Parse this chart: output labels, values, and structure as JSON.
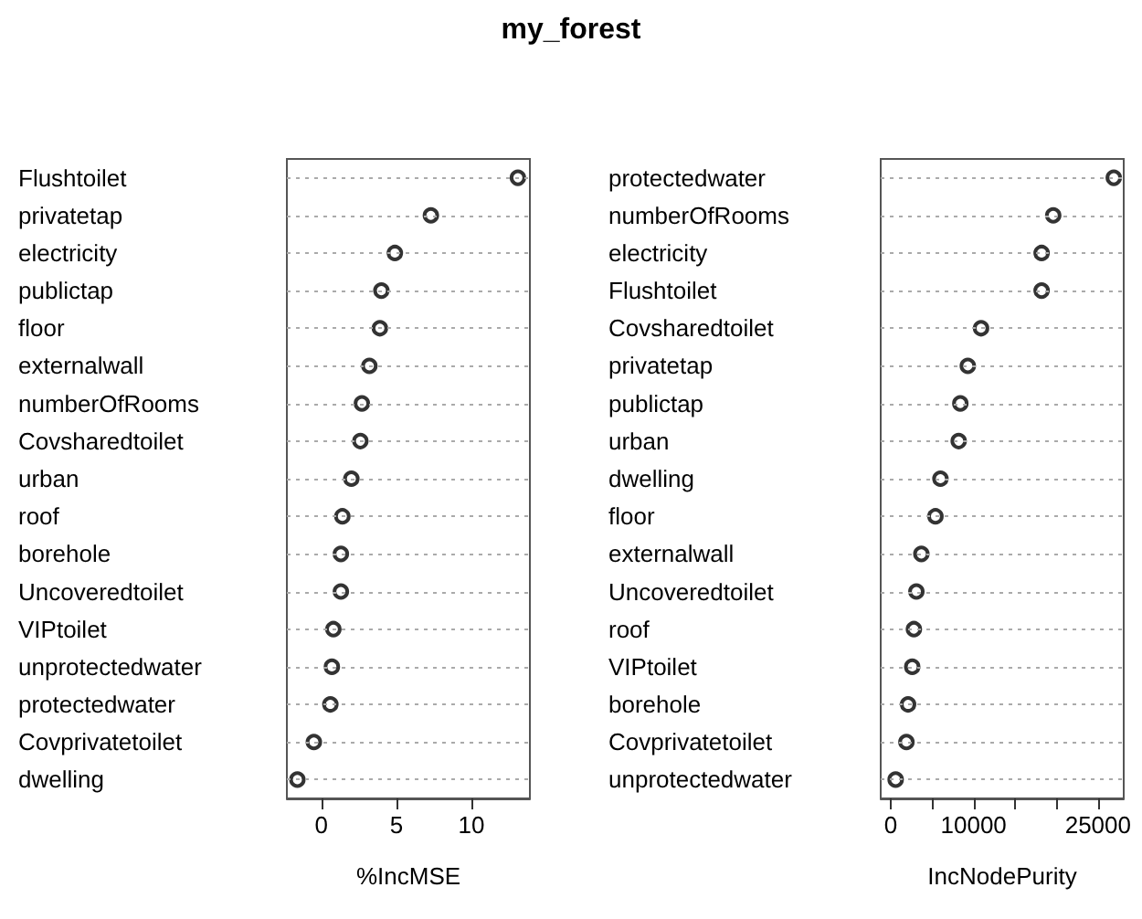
{
  "chart_data": [
    {
      "type": "scatter",
      "orientation": "horizontal",
      "title": "my_forest",
      "xlabel": "%IncMSE",
      "categories": [
        "Flushtoilet",
        "privatetap",
        "electricity",
        "publictap",
        "floor",
        "externalwall",
        "numberOfRooms",
        "Covsharedtoilet",
        "urban",
        "roof",
        "borehole",
        "Uncoveredtoilet",
        "VIPtoilet",
        "unprotectedwater",
        "protectedwater",
        "Covprivatetoilet",
        "dwelling"
      ],
      "values": [
        13.1,
        7.3,
        4.9,
        4.0,
        3.9,
        3.2,
        2.7,
        2.6,
        2.0,
        1.4,
        1.3,
        1.3,
        0.8,
        0.7,
        0.6,
        -0.5,
        -1.6
      ],
      "color": "#000000",
      "marker": "circle",
      "grid": "y",
      "xlim": [
        -2.3,
        13.9
      ],
      "xticks": [
        0,
        5,
        10
      ]
    },
    {
      "type": "scatter",
      "orientation": "horizontal",
      "xlabel": "IncNodePurity",
      "categories": [
        "protectedwater",
        "numberOfRooms",
        "electricity",
        "Flushtoilet",
        "Covsharedtoilet",
        "privatetap",
        "publictap",
        "urban",
        "dwelling",
        "floor",
        "externalwall",
        "Uncoveredtoilet",
        "roof",
        "VIPtoilet",
        "borehole",
        "Covprivatetoilet",
        "unprotectedwater"
      ],
      "values": [
        26900,
        19600,
        18200,
        18200,
        10900,
        9300,
        8400,
        8200,
        6000,
        5400,
        3700,
        3100,
        2800,
        2600,
        2100,
        1900,
        600
      ],
      "color": "#000000",
      "marker": "circle",
      "grid": "y",
      "xlim": [
        -1200,
        28100
      ],
      "xticks": [
        0,
        {
          "value": 5000,
          "label": null
        },
        10000,
        {
          "value": 15000,
          "label": null
        },
        {
          "value": 20000,
          "label": null
        },
        25000
      ]
    }
  ]
}
